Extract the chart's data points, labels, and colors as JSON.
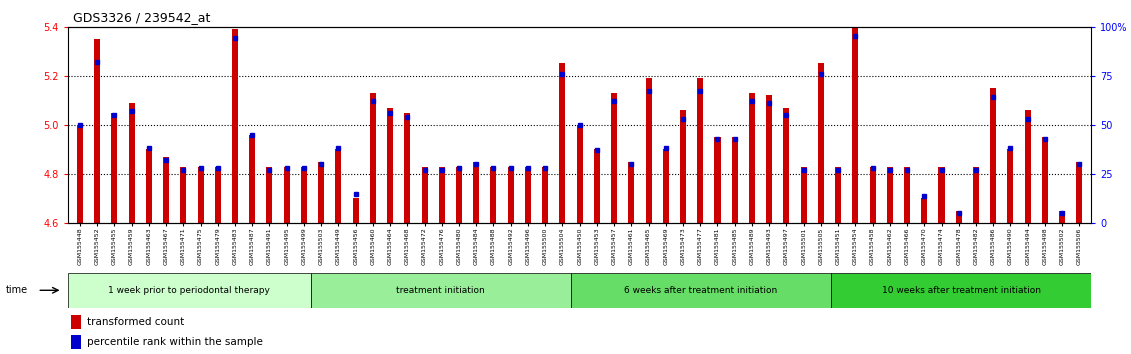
{
  "title": "GDS3326 / 239542_at",
  "ylim": [
    4.6,
    5.4
  ],
  "yticks": [
    4.6,
    4.8,
    5.0,
    5.2,
    5.4
  ],
  "right_yticks": [
    0,
    25,
    50,
    75,
    100
  ],
  "right_ylabels": [
    "0",
    "25",
    "50",
    "75",
    "100%"
  ],
  "bar_color": "#cc0000",
  "dot_color": "#0000cc",
  "background_color": "#ffffff",
  "plot_bg": "#ffffff",
  "groups": [
    {
      "label": "1 week prior to periodontal therapy",
      "color": "#ccffcc",
      "start": 0,
      "end": 14
    },
    {
      "label": "treatment initiation",
      "color": "#99ee99",
      "start": 14,
      "end": 29
    },
    {
      "label": "6 weeks after treatment initiation",
      "color": "#66dd66",
      "start": 29,
      "end": 44
    },
    {
      "label": "10 weeks after treatment initiation",
      "color": "#33cc33",
      "start": 44,
      "end": 59
    }
  ],
  "samples": [
    "GSM155448",
    "GSM155452",
    "GSM155455",
    "GSM155459",
    "GSM155463",
    "GSM155467",
    "GSM155471",
    "GSM155475",
    "GSM155479",
    "GSM155483",
    "GSM155487",
    "GSM155491",
    "GSM155495",
    "GSM155499",
    "GSM155503",
    "GSM155449",
    "GSM155456",
    "GSM155460",
    "GSM155464",
    "GSM155468",
    "GSM155472",
    "GSM155476",
    "GSM155480",
    "GSM155484",
    "GSM155488",
    "GSM155492",
    "GSM155496",
    "GSM155500",
    "GSM155504",
    "GSM155450",
    "GSM155453",
    "GSM155457",
    "GSM155461",
    "GSM155465",
    "GSM155469",
    "GSM155473",
    "GSM155477",
    "GSM155481",
    "GSM155485",
    "GSM155489",
    "GSM155493",
    "GSM155497",
    "GSM155501",
    "GSM155505",
    "GSM155451",
    "GSM155454",
    "GSM155458",
    "GSM155462",
    "GSM155466",
    "GSM155470",
    "GSM155474",
    "GSM155478",
    "GSM155482",
    "GSM155486",
    "GSM155490",
    "GSM155494",
    "GSM155498",
    "GSM155502",
    "GSM155506"
  ],
  "bar_values": [
    5.0,
    5.35,
    5.05,
    5.09,
    4.9,
    4.87,
    4.83,
    4.83,
    4.83,
    5.39,
    4.96,
    4.83,
    4.83,
    4.83,
    4.85,
    4.9,
    4.7,
    5.13,
    5.07,
    5.05,
    4.83,
    4.83,
    4.83,
    4.85,
    4.83,
    4.83,
    4.83,
    4.83,
    5.25,
    5.0,
    4.9,
    5.13,
    4.85,
    5.19,
    4.9,
    5.06,
    5.19,
    4.95,
    4.95,
    5.13,
    5.12,
    5.07,
    4.83,
    5.25,
    4.83,
    5.4,
    4.83,
    4.83,
    4.83,
    4.7,
    4.83,
    4.65,
    4.83,
    5.15,
    4.9,
    5.06,
    4.95,
    4.65,
    4.85
  ],
  "dot_values_pct": [
    50,
    82,
    55,
    57,
    38,
    32,
    27,
    28,
    28,
    94,
    45,
    27,
    28,
    28,
    30,
    38,
    15,
    62,
    56,
    54,
    27,
    27,
    28,
    30,
    28,
    28,
    28,
    28,
    76,
    50,
    37,
    62,
    30,
    67,
    38,
    53,
    67,
    43,
    43,
    62,
    61,
    55,
    27,
    76,
    27,
    95,
    28,
    27,
    27,
    14,
    27,
    5,
    27,
    64,
    38,
    53,
    43,
    5,
    30
  ],
  "fig_width": 11.31,
  "fig_height": 3.54,
  "dpi": 100
}
